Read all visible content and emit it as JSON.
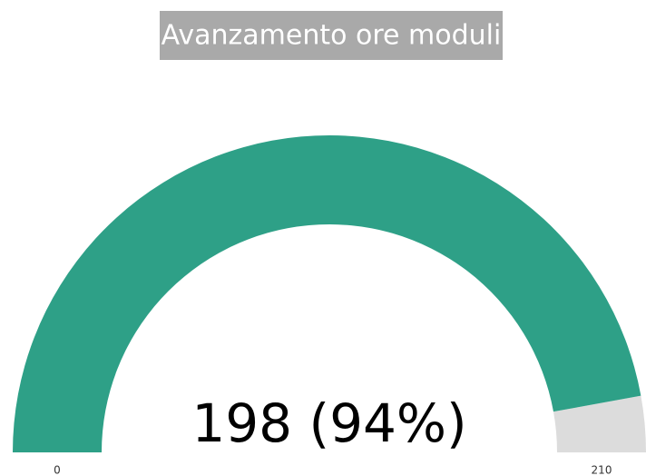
{
  "chart_data": {
    "type": "gauge",
    "title": "Avanzamento ore moduli",
    "values": [
      198
    ],
    "value_labels": [
      "198 (94%)"
    ],
    "ylim": [
      0,
      210
    ],
    "yticks": [
      0,
      210
    ],
    "color": "#2ea087",
    "track_color": "#dcdcdc",
    "title_background": "#a9a9a9"
  }
}
